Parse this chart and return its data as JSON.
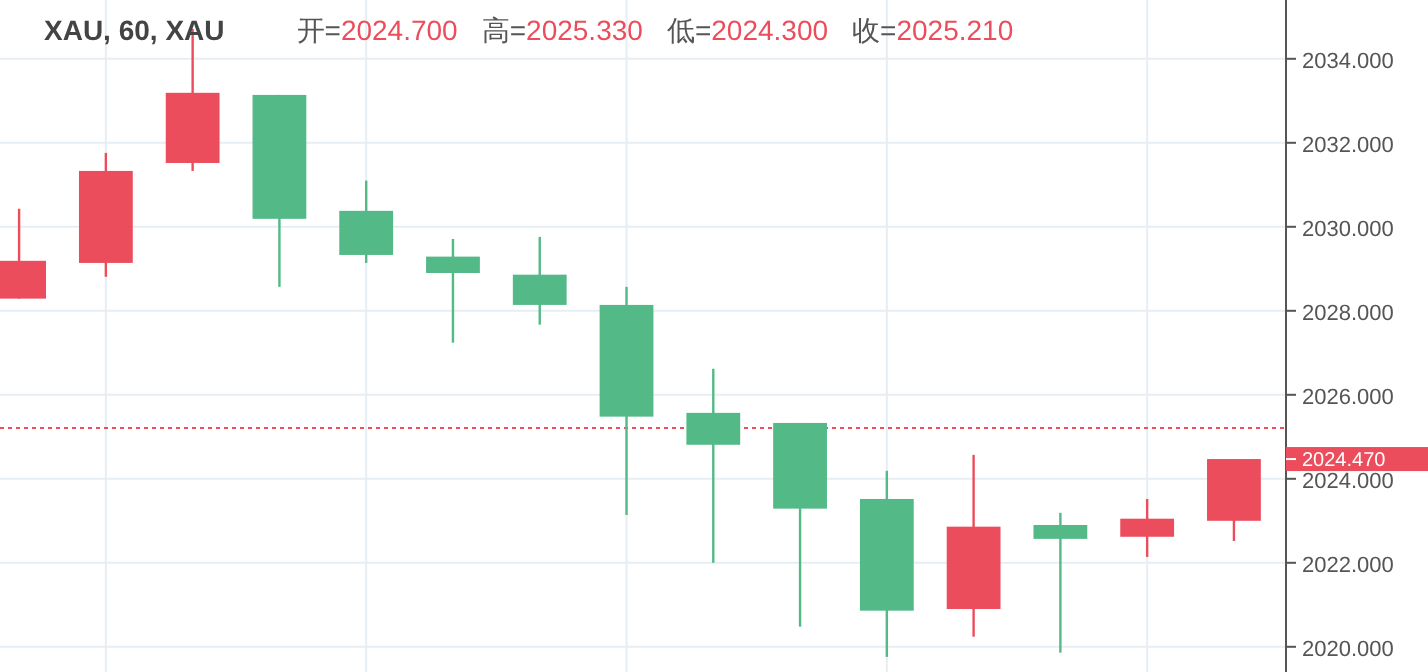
{
  "chart_data": {
    "type": "candlestick",
    "annotations": [
      "XAU, 60, XAU",
      "开=2024.700",
      "高=2025.330",
      "低=2024.300",
      "收=2025.210",
      "2024.470"
    ],
    "categories": [
      null,
      null,
      null,
      null,
      null,
      null,
      null,
      null,
      null,
      null,
      null,
      null,
      null,
      null,
      null
    ],
    "ohlc": [
      [
        2028.29,
        2030.43,
        2028.29,
        2029.19
      ],
      [
        2029.14,
        2031.76,
        2028.81,
        2031.33
      ],
      [
        2031.52,
        2034.71,
        2031.33,
        2033.19
      ],
      [
        2033.14,
        2033.14,
        2028.57,
        2030.19
      ],
      [
        2030.38,
        2031.1,
        2029.14,
        2029.33
      ],
      [
        2029.29,
        2029.71,
        2027.24,
        2028.9
      ],
      [
        2028.86,
        2029.76,
        2027.67,
        2028.14
      ],
      [
        2028.14,
        2028.57,
        2023.14,
        2025.48
      ],
      [
        2025.57,
        2026.62,
        2022.0,
        2024.81
      ],
      [
        2025.33,
        2025.33,
        2020.48,
        2023.29
      ],
      [
        2023.52,
        2024.19,
        2019.76,
        2020.86
      ],
      [
        2020.9,
        2024.57,
        2020.24,
        2022.86
      ],
      [
        2022.9,
        2023.19,
        2019.86,
        2022.57
      ],
      [
        2022.62,
        2023.52,
        2022.14,
        2023.05
      ],
      [
        2023.0,
        2024.47,
        2022.52,
        2024.47
      ]
    ],
    "colors": [
      "#eb4d5c",
      "#eb4d5c",
      "#eb4d5c",
      "#53b987",
      "#53b987",
      "#53b987",
      "#53b987",
      "#53b987",
      "#53b987",
      "#53b987",
      "#53b987",
      "#eb4d5c",
      "#53b987",
      "#eb4d5c",
      "#eb4d5c"
    ],
    "ylim": [
      2019.4,
      2035.4
    ],
    "yticks": [
      {
        "value": 2020,
        "label": "2020.000"
      },
      {
        "value": 2022,
        "label": "2022.000"
      },
      {
        "value": 2024,
        "label": "2024.000"
      },
      {
        "value": 2026,
        "label": "2026.000"
      },
      {
        "value": 2028,
        "label": "2028.000"
      },
      {
        "value": 2030,
        "label": "2030.000"
      },
      {
        "value": 2032,
        "label": "2032.000"
      },
      {
        "value": 2034,
        "label": "2034.000"
      }
    ],
    "grid": true,
    "ref_lines": [
      {
        "axis": "y",
        "value": 2025.21,
        "color": "#eb4d5c",
        "line_style": "dotted"
      }
    ]
  }
}
